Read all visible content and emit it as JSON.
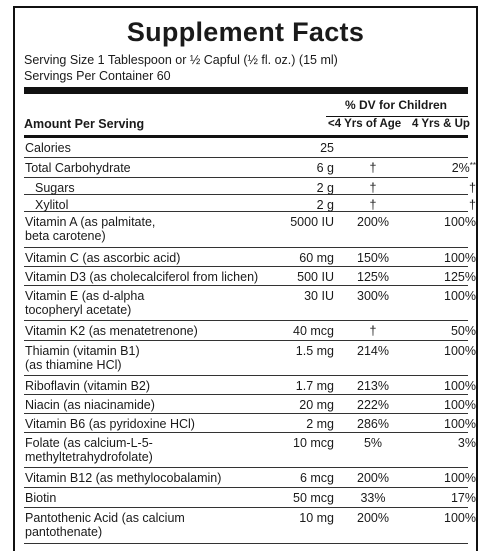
{
  "title": "Supplement Facts",
  "serving_size": "Serving Size 1 Tablespoon or ½ Capful (½ fl. oz.) (15 ml)",
  "servings_per_container": "Servings Per Container 60",
  "dv_header": "% DV for Children",
  "amount_per_serving": "Amount Per Serving",
  "col_under4": "<4 Yrs of Age",
  "col_4up": "4 Yrs & Up",
  "rows": [
    {
      "name": "Calories",
      "amount": "25",
      "dv_under4": "",
      "dv_4up": "",
      "dv_4up_note": "",
      "indent": false
    },
    {
      "name": "Total Carbohydrate",
      "amount": "6 g",
      "dv_under4": "†",
      "dv_4up": "2%",
      "dv_4up_note": "**",
      "indent": false
    },
    {
      "name": "Sugars",
      "amount": "2 g",
      "dv_under4": "†",
      "dv_4up": "†",
      "dv_4up_note": "",
      "indent": true
    },
    {
      "name": "Xylitol",
      "amount": "2 g",
      "dv_under4": "†",
      "dv_4up": "†",
      "dv_4up_note": "",
      "indent": true
    },
    {
      "name": "Vitamin A (as palmitate,\nbeta carotene)",
      "amount": "5000 IU",
      "dv_under4": "200%",
      "dv_4up": "100%",
      "dv_4up_note": "",
      "indent": false
    },
    {
      "name": "Vitamin C (as ascorbic acid)",
      "amount": "60 mg",
      "dv_under4": "150%",
      "dv_4up": "100%",
      "dv_4up_note": "",
      "indent": false
    },
    {
      "name": "Vitamin D3 (as cholecalciferol from lichen)",
      "amount": "500 IU",
      "dv_under4": "125%",
      "dv_4up": "125%",
      "dv_4up_note": "",
      "indent": false
    },
    {
      "name": "Vitamin E (as d-alpha\ntocopheryl acetate)",
      "amount": "30 IU",
      "dv_under4": "300%",
      "dv_4up": "100%",
      "dv_4up_note": "",
      "indent": false
    },
    {
      "name": "Vitamin K2 (as menatetrenone)",
      "amount": "40 mcg",
      "dv_under4": "†",
      "dv_4up": "50%",
      "dv_4up_note": "",
      "indent": false
    },
    {
      "name": "Thiamin (vitamin B1)\n(as thiamine HCl)",
      "amount": "1.5 mg",
      "dv_under4": "214%",
      "dv_4up": "100%",
      "dv_4up_note": "",
      "indent": false
    },
    {
      "name": "Riboflavin (vitamin B2)",
      "amount": "1.7 mg",
      "dv_under4": "213%",
      "dv_4up": "100%",
      "dv_4up_note": "",
      "indent": false
    },
    {
      "name": "Niacin (as niacinamide)",
      "amount": "20 mg",
      "dv_under4": "222%",
      "dv_4up": "100%",
      "dv_4up_note": "",
      "indent": false
    },
    {
      "name": "Vitamin B6 (as pyridoxine HCl)",
      "amount": "2 mg",
      "dv_under4": "286%",
      "dv_4up": "100%",
      "dv_4up_note": "",
      "indent": false
    },
    {
      "name": "Folate (as calcium-L-5-\nmethyltetrahydrofolate)",
      "amount": "10 mcg",
      "dv_under4": "5%",
      "dv_4up": "3%",
      "dv_4up_note": "",
      "indent": false
    },
    {
      "name": "Vitamin B12 (as methylocobalamin)",
      "amount": "6 mcg",
      "dv_under4": "200%",
      "dv_4up": "100%",
      "dv_4up_note": "",
      "indent": false
    },
    {
      "name": "Biotin",
      "amount": "50 mcg",
      "dv_under4": "33%",
      "dv_4up": "17%",
      "dv_4up_note": "",
      "indent": false
    },
    {
      "name": "Pantothenic Acid (as calcium\npantothenate)",
      "amount": "10 mg",
      "dv_under4": "200%",
      "dv_4up": "100%",
      "dv_4up_note": "",
      "indent": false
    }
  ]
}
